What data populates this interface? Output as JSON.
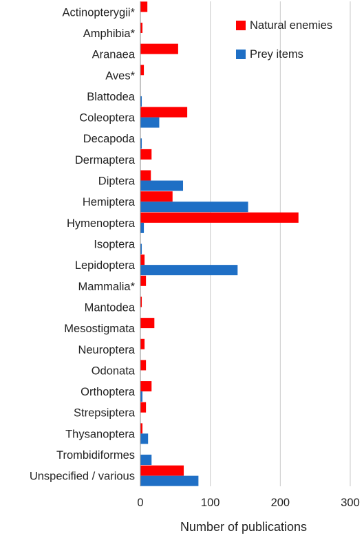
{
  "chart_data": {
    "type": "bar",
    "orientation": "horizontal",
    "categories": [
      "Actinopterygii*",
      "Amphibia*",
      "Aranaea",
      "Aves*",
      "Blattodea",
      "Coleoptera",
      "Decapoda",
      "Dermaptera",
      "Diptera",
      "Hemiptera",
      "Hymenoptera",
      "Isoptera",
      "Lepidoptera",
      "Mammalia*",
      "Mantodea",
      "Mesostigmata",
      "Neuroptera",
      "Odonata",
      "Orthoptera",
      "Strepsiptera",
      "Thysanoptera",
      "Trombidiformes",
      "Unspecified / various"
    ],
    "series": [
      {
        "name": "Natural enemies",
        "color": "#ff0000",
        "values": [
          10,
          3,
          54,
          5,
          0,
          67,
          0,
          16,
          15,
          46,
          226,
          0,
          6,
          8,
          2,
          20,
          6,
          8,
          16,
          8,
          3,
          0,
          62
        ]
      },
      {
        "name": "Prey items",
        "color": "#1f6fc5",
        "values": [
          0,
          0,
          0,
          0,
          2,
          27,
          2,
          0,
          61,
          154,
          5,
          2,
          139,
          0,
          0,
          0,
          0,
          0,
          3,
          0,
          11,
          16,
          83
        ]
      }
    ],
    "xlabel": "Number of publications",
    "xlim": [
      0,
      300
    ],
    "xticks": [
      "0",
      "100",
      "200",
      "300"
    ],
    "grid": "vertical",
    "legend": "top-right"
  }
}
